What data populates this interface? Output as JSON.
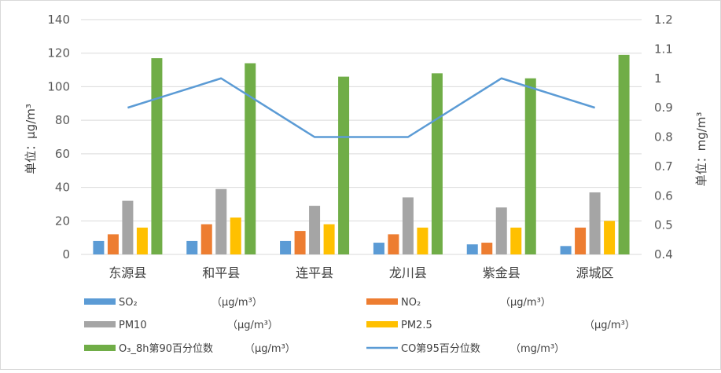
{
  "chart_data": {
    "type": "bar+line",
    "categories": [
      "东源县",
      "和平县",
      "连平县",
      "龙川县",
      "紫金县",
      "源城区"
    ],
    "series": [
      {
        "name": "SO₂",
        "unit": "（μg/m³）",
        "type": "bar",
        "axis": "left",
        "color": "#5b9bd5",
        "values": [
          8,
          8,
          8,
          7,
          6,
          5
        ]
      },
      {
        "name": "NO₂",
        "unit": "（μg/m³）",
        "type": "bar",
        "axis": "left",
        "color": "#ed7d31",
        "values": [
          12,
          18,
          14,
          12,
          7,
          16
        ]
      },
      {
        "name": "PM10",
        "unit": "（μg/m³）",
        "type": "bar",
        "axis": "left",
        "color": "#a5a5a5",
        "values": [
          32,
          39,
          29,
          34,
          28,
          37
        ]
      },
      {
        "name": "PM2.5",
        "unit": "（μg/m³）",
        "type": "bar",
        "axis": "left",
        "color": "#ffc000",
        "values": [
          16,
          22,
          18,
          16,
          16,
          20
        ]
      },
      {
        "name": "O₃_8h第90百分位数",
        "unit": "（μg/m³）",
        "type": "bar",
        "axis": "left",
        "color": "#70ad47",
        "values": [
          117,
          114,
          106,
          108,
          105,
          119
        ]
      },
      {
        "name": "CO第95百分位数",
        "unit": "（mg/m³）",
        "type": "line",
        "axis": "right",
        "color": "#5b9bd5",
        "values": [
          0.9,
          1.0,
          0.8,
          0.8,
          1.0,
          0.9
        ]
      }
    ],
    "y_left": {
      "label": "单位：μg/m³",
      "min": 0,
      "max": 140,
      "ticks": [
        "0",
        "20",
        "40",
        "60",
        "80",
        "100",
        "120",
        "140"
      ]
    },
    "y_right": {
      "label": "单位：mg/m³",
      "min": 0.4,
      "max": 1.2,
      "ticks": [
        "0.4",
        "0.5",
        "0.6",
        "0.7",
        "0.8",
        "0.9",
        "1",
        "1.1",
        "1.2"
      ]
    },
    "grid": true,
    "legend": "bottom"
  }
}
